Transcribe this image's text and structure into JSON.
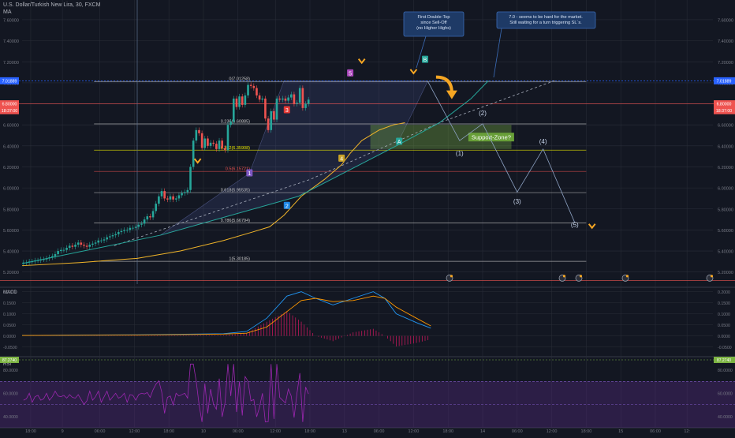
{
  "header": {
    "symbol": "U.S. Dollar/Turkish New Lira, 30, FXCM",
    "indicator": "MA"
  },
  "colors": {
    "bg": "#131722",
    "grid": "#2a2e39",
    "bull": "#26a69a",
    "bear": "#ef5350",
    "ma": "#f0b429",
    "fib": "#c7c7c7",
    "accent": "#f5a623"
  },
  "chart_data": [
    {
      "type": "candlestick",
      "title": "U.S. Dollar/Turkish New Lira, 30, FXCM",
      "ylim": [
        5.1,
        7.75
      ],
      "y_ticks": [
        "7.60000",
        "7.40000",
        "7.20000",
        "7.00000",
        "6.80000",
        "6.60000",
        "6.40000",
        "6.20000",
        "6.00000",
        "5.80000",
        "5.60000",
        "5.40000",
        "5.20000"
      ],
      "price_tags": [
        {
          "label": "7.01889",
          "value": 7.01889,
          "color": "#2962ff"
        },
        {
          "label": "6.80000",
          "value": 6.8,
          "color": "#ef5350"
        },
        {
          "label": "18:37:00",
          "value": 6.735,
          "color": "#ef5350"
        }
      ],
      "x_ticks": [
        "18:00",
        "9",
        "06:00",
        "12:00",
        "18:00",
        "10",
        "06:00",
        "12:00",
        "18:00",
        "13",
        "06:00",
        "12:00",
        "18:00",
        "14",
        "06:00",
        "12:00",
        "18:00",
        "15",
        "06:00",
        "12:"
      ],
      "x_tick_index": [
        3,
        14,
        27,
        39,
        51,
        63,
        75,
        88,
        100,
        112,
        124,
        136,
        148,
        160,
        172,
        184,
        196,
        208,
        220,
        231
      ],
      "closes": [
        5.29,
        5.29,
        5.3,
        5.3,
        5.31,
        5.31,
        5.32,
        5.32,
        5.33,
        5.34,
        5.35,
        5.37,
        5.4,
        5.41,
        5.41,
        5.43,
        5.45,
        5.44,
        5.46,
        5.48,
        5.46,
        5.45,
        5.44,
        5.46,
        5.47,
        5.48,
        5.5,
        5.5,
        5.51,
        5.53,
        5.54,
        5.55,
        5.56,
        5.58,
        5.59,
        5.6,
        5.6,
        5.62,
        5.62,
        5.63,
        5.65,
        5.66,
        5.7,
        5.73,
        5.72,
        5.78,
        5.85,
        5.92,
        5.97,
        5.9,
        5.89,
        5.92,
        5.89,
        5.9,
        5.93,
        5.95,
        5.96,
        5.98,
        6.2,
        6.45,
        6.55,
        6.52,
        6.38,
        6.47,
        6.4,
        6.43,
        6.42,
        6.37,
        6.45,
        6.38,
        6.36,
        6.6,
        6.63,
        6.85,
        6.77,
        6.87,
        6.79,
        6.88,
        6.98,
        6.97,
        6.95,
        6.88,
        6.84,
        6.85,
        6.66,
        6.55,
        6.73,
        6.65,
        6.85,
        6.84,
        6.85,
        6.83,
        6.86,
        6.89,
        6.8,
        6.81,
        6.95,
        6.76,
        6.8,
        6.84
      ],
      "ma_line": [
        [
          0,
          5.26
        ],
        [
          20,
          5.29
        ],
        [
          40,
          5.33
        ],
        [
          55,
          5.4
        ],
        [
          70,
          5.5
        ],
        [
          80,
          5.58
        ],
        [
          86,
          5.63
        ],
        [
          91,
          5.74
        ],
        [
          97,
          5.92
        ],
        [
          105,
          6.08
        ],
        [
          111,
          6.22
        ],
        [
          114,
          6.33
        ],
        [
          118,
          6.45
        ],
        [
          124,
          6.55
        ],
        [
          129,
          6.6
        ],
        [
          133,
          6.62
        ]
      ],
      "trend_line": [
        [
          0,
          5.28
        ],
        [
          48,
          5.55
        ],
        [
          96,
          5.92
        ],
        [
          130,
          6.4
        ],
        [
          145,
          6.62
        ],
        [
          156,
          6.85
        ],
        [
          162,
          7.02
        ]
      ],
      "dashed_line": [
        [
          32,
          5.45
        ],
        [
          100,
          6.08
        ],
        [
          145,
          6.62
        ],
        [
          185,
          7.02
        ]
      ],
      "fibonacci": [
        {
          "label": "0(7.01258)",
          "value": 7.01258
        },
        {
          "label": "0.236(6.60885)",
          "value": 6.60885
        },
        {
          "label": "0.382(6.35908)",
          "value": 6.35908
        },
        {
          "label": "0.5(6.15721)",
          "value": 6.15721
        },
        {
          "label": "0.618(5.95535)",
          "value": 5.95535
        },
        {
          "label": "0.786(5.66794)",
          "value": 5.66794
        },
        {
          "label": "1(5.30185)",
          "value": 5.30185
        }
      ],
      "forecast_path": [
        [
          141,
          7.01
        ],
        [
          152,
          6.45
        ],
        [
          160,
          6.61
        ],
        [
          172,
          5.96
        ],
        [
          181,
          6.37
        ],
        [
          192,
          5.67
        ]
      ],
      "forecast_labels": [
        {
          "label": "(1)",
          "i": 152,
          "v": 6.31
        },
        {
          "label": "(2)",
          "i": 160,
          "v": 6.69
        },
        {
          "label": "(3)",
          "i": 172,
          "v": 5.85
        },
        {
          "label": "(4)",
          "i": 181,
          "v": 6.42
        },
        {
          "label": "(5)",
          "i": 192,
          "v": 5.63
        }
      ],
      "wave_labels": [
        {
          "label": "1",
          "i": 79,
          "v": 6.14,
          "color": "#7e57c2"
        },
        {
          "label": "2",
          "i": 92,
          "v": 5.83,
          "color": "#1e88e5"
        },
        {
          "label": "3",
          "i": 92,
          "v": 6.74,
          "color": "#e53935"
        },
        {
          "label": "4",
          "i": 111,
          "v": 6.28,
          "color": "#c9a227"
        },
        {
          "label": "5",
          "i": 114,
          "v": 7.09,
          "color": "#ab47bc"
        },
        {
          "label": "A",
          "i": 131,
          "v": 6.44,
          "color": "#26a69a"
        },
        {
          "label": "B",
          "i": 140,
          "v": 7.22,
          "color": "#26a69a"
        }
      ],
      "support_zone": {
        "label": "Support-Zone?",
        "i0": 121,
        "i1": 170,
        "v0": 6.37,
        "v1": 6.6
      },
      "callouts": [
        {
          "lines": [
            "First Double-Top",
            "since Sell-Off",
            "(no Higher Highs)"
          ]
        },
        {
          "lines": [
            "7.0 - seems to be hard for the market.",
            "Still waiting for a turn triggering SL´s."
          ]
        }
      ]
    },
    {
      "type": "line",
      "title": "MACD",
      "ylim": [
        -0.08,
        0.22
      ],
      "y_ticks": [
        "0.2000",
        "0.1500",
        "0.1000",
        "0.0500",
        "0.0000",
        "-0.0500"
      ],
      "macd": [
        [
          0,
          0.002
        ],
        [
          40,
          0.005
        ],
        [
          70,
          0.01
        ],
        [
          78,
          0.02
        ],
        [
          85,
          0.08
        ],
        [
          92,
          0.18
        ],
        [
          97,
          0.2
        ],
        [
          102,
          0.17
        ],
        [
          108,
          0.14
        ],
        [
          115,
          0.17
        ],
        [
          122,
          0.2
        ],
        [
          126,
          0.17
        ],
        [
          130,
          0.1
        ],
        [
          137,
          0.06
        ],
        [
          142,
          0.035
        ]
      ],
      "signal": [
        [
          0,
          0.002
        ],
        [
          40,
          0.004
        ],
        [
          70,
          0.008
        ],
        [
          78,
          0.012
        ],
        [
          85,
          0.04
        ],
        [
          92,
          0.11
        ],
        [
          97,
          0.16
        ],
        [
          102,
          0.17
        ],
        [
          108,
          0.155
        ],
        [
          115,
          0.16
        ],
        [
          122,
          0.18
        ],
        [
          126,
          0.17
        ],
        [
          130,
          0.13
        ],
        [
          137,
          0.08
        ],
        [
          142,
          0.045
        ]
      ]
    },
    {
      "type": "line",
      "title": "RSI",
      "ylim": [
        30,
        90
      ],
      "y_ticks": [
        "80.0000",
        "60.0000",
        "40.0000"
      ],
      "rsi_tag": "87.2740"
    }
  ]
}
